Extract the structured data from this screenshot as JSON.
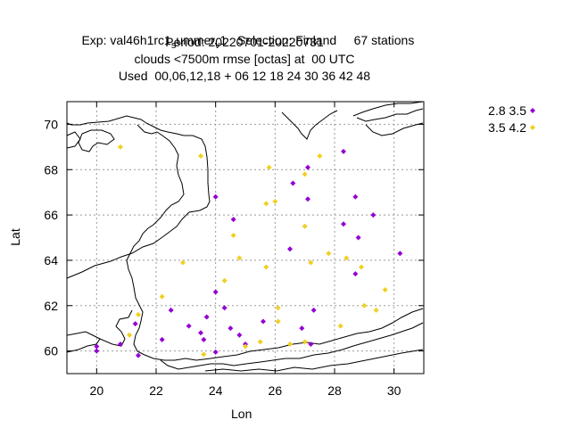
{
  "title": {
    "line1_pre": "Exp: val46h1rc1",
    "line1_sub1": "s",
    "line1_mid": "ummer",
    "line1_sub2": "v",
    "line1_post": "1   Selection: Finland     67 stations",
    "line2": "Period: 20220701-20220731",
    "line3": "clouds <7500m rmse [octas] at  00 UTC",
    "line4": "Used  00,06,12,18 + 06 12 18 24 30 36 42 48"
  },
  "chart_data": {
    "type": "scatter",
    "xlabel": "Lon",
    "ylabel": "Lat",
    "xlim": [
      19,
      31
    ],
    "ylim": [
      59,
      71
    ],
    "xticks": [
      20,
      22,
      24,
      26,
      28,
      30
    ],
    "yticks": [
      60,
      62,
      64,
      66,
      68,
      70
    ],
    "grid": true,
    "legend_position": "outside-top-right",
    "series": [
      {
        "name": "2.8 3.5",
        "color": "#9400d3",
        "points": [
          [
            20.0,
            60.2
          ],
          [
            20.0,
            60.0
          ],
          [
            20.8,
            60.3
          ],
          [
            21.3,
            61.2
          ],
          [
            21.4,
            59.8
          ],
          [
            22.2,
            60.5
          ],
          [
            22.5,
            61.8
          ],
          [
            23.1,
            61.1
          ],
          [
            23.5,
            60.8
          ],
          [
            23.6,
            60.5
          ],
          [
            23.7,
            61.5
          ],
          [
            24.0,
            59.95
          ],
          [
            24.0,
            62.6
          ],
          [
            24.0,
            66.8
          ],
          [
            24.3,
            61.9
          ],
          [
            24.5,
            61.0
          ],
          [
            24.6,
            65.8
          ],
          [
            24.8,
            60.7
          ],
          [
            25.0,
            60.3
          ],
          [
            25.6,
            61.3
          ],
          [
            26.5,
            64.5
          ],
          [
            26.6,
            67.4
          ],
          [
            26.9,
            61.0
          ],
          [
            27.1,
            68.1
          ],
          [
            27.1,
            66.7
          ],
          [
            27.2,
            60.3
          ],
          [
            27.3,
            61.8
          ],
          [
            28.3,
            65.6
          ],
          [
            28.3,
            68.8
          ],
          [
            28.7,
            63.4
          ],
          [
            28.7,
            66.8
          ],
          [
            28.8,
            65.0
          ],
          [
            29.3,
            66.0
          ],
          [
            30.2,
            64.3
          ]
        ]
      },
      {
        "name": "3.5 4.2",
        "color": "#f0d020",
        "points": [
          [
            20.8,
            69.0
          ],
          [
            21.1,
            60.7
          ],
          [
            21.4,
            61.6
          ],
          [
            22.2,
            62.4
          ],
          [
            22.9,
            63.9
          ],
          [
            23.5,
            68.6
          ],
          [
            23.6,
            59.85
          ],
          [
            24.3,
            63.1
          ],
          [
            24.6,
            65.1
          ],
          [
            24.8,
            64.1
          ],
          [
            25.0,
            60.2
          ],
          [
            25.5,
            60.4
          ],
          [
            25.7,
            63.7
          ],
          [
            25.7,
            66.5
          ],
          [
            25.8,
            68.1
          ],
          [
            26.0,
            66.6
          ],
          [
            26.1,
            61.3
          ],
          [
            26.1,
            61.9
          ],
          [
            26.5,
            60.3
          ],
          [
            27.0,
            60.4
          ],
          [
            27.0,
            65.5
          ],
          [
            27.0,
            67.8
          ],
          [
            27.2,
            63.9
          ],
          [
            27.5,
            68.6
          ],
          [
            27.8,
            64.3
          ],
          [
            28.2,
            61.1
          ],
          [
            28.4,
            64.1
          ],
          [
            28.9,
            63.7
          ],
          [
            29.0,
            62.0
          ],
          [
            29.4,
            61.8
          ],
          [
            29.7,
            62.7
          ]
        ]
      }
    ]
  }
}
